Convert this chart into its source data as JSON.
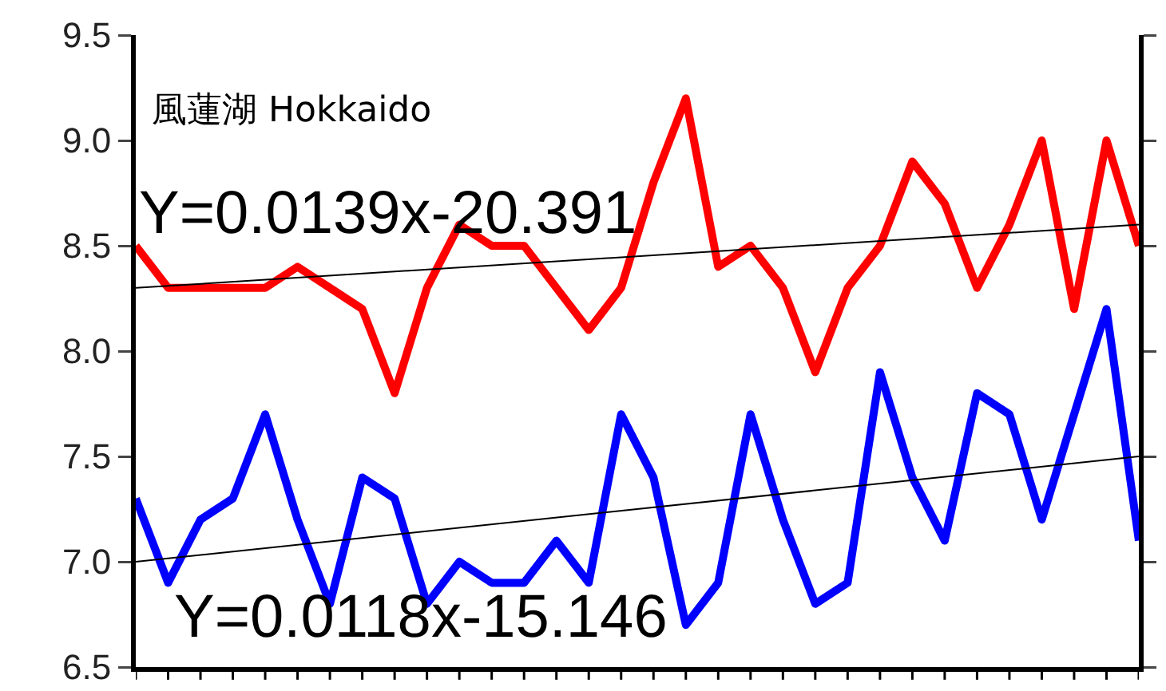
{
  "chart_data": {
    "type": "line",
    "title": "風蓮湖 Hokkaido",
    "annotations": [
      "Y=0.0139x-20.391",
      "Y=0.0118x-15.146"
    ],
    "categories": [
      null,
      null,
      null,
      null,
      null,
      null,
      null,
      null,
      null,
      null,
      null,
      null,
      null,
      null,
      null,
      null,
      null,
      null,
      null,
      null,
      null,
      null,
      null,
      null,
      null,
      null,
      null,
      null,
      null,
      null,
      null,
      null
    ],
    "series": [
      {
        "color": "#ff0000",
        "values": [
          8.5,
          8.3,
          8.3,
          8.3,
          8.3,
          8.4,
          8.3,
          8.2,
          7.8,
          8.3,
          8.6,
          8.5,
          8.5,
          8.3,
          8.1,
          8.3,
          8.8,
          9.2,
          8.4,
          8.5,
          8.3,
          7.9,
          8.3,
          8.5,
          8.9,
          8.7,
          8.3,
          8.6,
          9.0,
          8.2,
          9.0,
          8.5
        ]
      },
      {
        "color": "#0000ff",
        "values": [
          7.3,
          6.9,
          7.2,
          7.3,
          7.7,
          7.2,
          6.8,
          7.4,
          7.3,
          6.8,
          7.0,
          6.9,
          6.9,
          7.1,
          6.9,
          7.7,
          7.4,
          6.7,
          6.9,
          7.7,
          7.2,
          6.8,
          6.9,
          7.9,
          7.4,
          7.1,
          7.8,
          7.7,
          7.2,
          7.7,
          8.2,
          7.1
        ]
      },
      {
        "color": "#000000",
        "values": [
          8.3,
          null,
          null,
          null,
          null,
          null,
          null,
          null,
          null,
          null,
          null,
          null,
          null,
          null,
          null,
          null,
          null,
          null,
          null,
          null,
          null,
          null,
          null,
          null,
          null,
          null,
          null,
          null,
          null,
          null,
          null,
          8.6
        ]
      },
      {
        "color": "#000000",
        "values": [
          7.0,
          null,
          null,
          null,
          null,
          null,
          null,
          null,
          null,
          null,
          null,
          null,
          null,
          null,
          null,
          null,
          null,
          null,
          null,
          null,
          null,
          null,
          null,
          null,
          null,
          null,
          null,
          null,
          null,
          null,
          null,
          7.5
        ]
      }
    ],
    "ylim": [
      6.5,
      9.5
    ],
    "yticks": [
      6.5,
      {
        "value": 7,
        "label": "7.0"
      },
      7.5,
      {
        "value": 8,
        "label": "8.0"
      },
      8.5,
      {
        "value": 9,
        "label": "9.0"
      },
      9.5
    ],
    "grid": false,
    "legend": false,
    "tick_labels": "y",
    "marker": "none",
    "line_style": "solid"
  }
}
